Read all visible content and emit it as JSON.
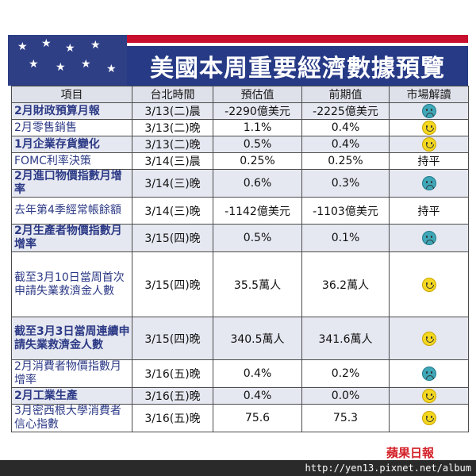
{
  "title": "美國本周重要經濟數據預覽",
  "columns": [
    "項目",
    "台北時間",
    "預估值",
    "前期值",
    "市場解讀"
  ],
  "rows": [
    {
      "item": "2月財政預算月報",
      "bold": true,
      "time": "3/13(二)晨",
      "forecast": "-2290億美元",
      "previous": "-2225億美元",
      "market_icon": "sad-face-icon",
      "market_text": ""
    },
    {
      "item": "2月零售銷售",
      "bold": false,
      "time": "3/13(二)晚",
      "forecast": "1.1%",
      "previous": "0.4%",
      "market_icon": "happy-face-icon",
      "market_text": ""
    },
    {
      "item": "1月企業存貨變化",
      "bold": true,
      "time": "3/13(二)晚",
      "forecast": "0.5%",
      "previous": "0.4%",
      "market_icon": "happy-face-icon",
      "market_text": ""
    },
    {
      "item": "FOMC利率決策",
      "bold": false,
      "time": "3/14(三)晨",
      "forecast": "0.25%",
      "previous": "0.25%",
      "market_icon": "",
      "market_text": "持平"
    },
    {
      "item": "2月進口物價指數月增率",
      "bold": true,
      "time": "3/14(三)晚",
      "forecast": "0.6%",
      "previous": "0.3%",
      "market_icon": "sad-face-icon",
      "market_text": ""
    },
    {
      "item": "去年第4季經常帳餘額",
      "bold": false,
      "time": "3/14(三)晚",
      "forecast": "-1142億美元",
      "previous": "-1103億美元",
      "market_icon": "",
      "market_text": "持平"
    },
    {
      "item": "2月生產者物價指數月增率",
      "bold": true,
      "time": "3/15(四)晚",
      "forecast": "0.5%",
      "previous": "0.1%",
      "market_icon": "sad-face-icon",
      "market_text": ""
    },
    {
      "item": "截至3月10日當周首次申請失業救濟金人數",
      "bold": false,
      "time": "3/15(四)晚",
      "forecast": "35.5萬人",
      "previous": "36.2萬人",
      "market_icon": "happy-face-icon",
      "market_text": ""
    },
    {
      "item": "截至3月3日當周連續申請失業救濟金人數",
      "bold": true,
      "time": "3/15(四)晚",
      "forecast": "340.5萬人",
      "previous": "341.6萬人",
      "market_icon": "happy-face-icon",
      "market_text": ""
    },
    {
      "item": "2月消費者物價指數月增率",
      "bold": false,
      "time": "3/16(五)晚",
      "forecast": "0.4%",
      "previous": "0.2%",
      "market_icon": "sad-face-icon",
      "market_text": ""
    },
    {
      "item": "2月工業生產",
      "bold": true,
      "time": "3/16(五)晚",
      "forecast": "0.4%",
      "previous": "0.0%",
      "market_icon": "happy-face-icon",
      "market_text": ""
    },
    {
      "item": "3月密西根大學消費者信心指數",
      "bold": false,
      "time": "3/16(五)晚",
      "forecast": "75.6",
      "previous": "75.3",
      "market_icon": "happy-face-icon",
      "market_text": ""
    }
  ],
  "logo_text": "蘋果日報",
  "watermark_url": "http://yen13.pixnet.net/album",
  "colors": {
    "navy": "#273a86",
    "red_stripe": "#c8102e",
    "item_text": "#2c3a86",
    "shade_row": "#e6e8f1",
    "happy": "#f4d820",
    "sad": "#3fa7b8"
  }
}
